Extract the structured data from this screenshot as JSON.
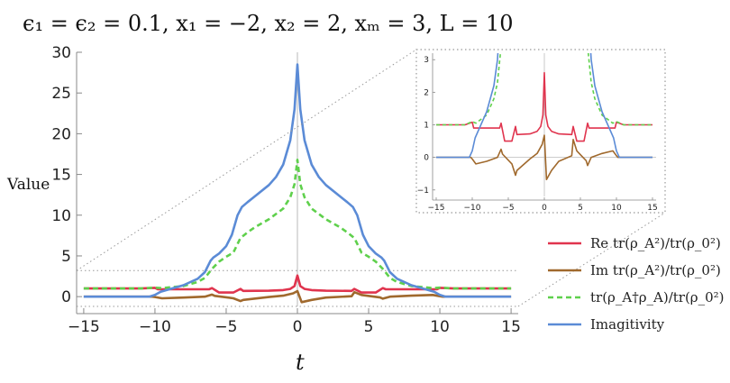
{
  "chart_data": {
    "type": "line",
    "title": "ϵ₁ = ϵ₂ = 0.1, x₁ = −2, x₂ = 2, xₘ = 3, L = 10",
    "xlabel": "t",
    "ylabel": "Value",
    "xlim": [
      -15.5,
      15.5
    ],
    "ylim": [
      -1.2,
      30
    ],
    "x_ticks": [
      -15,
      -10,
      -5,
      0,
      5,
      10,
      15
    ],
    "y_ticks": [
      0,
      5,
      10,
      15,
      20,
      25,
      30
    ],
    "inset": {
      "xlim": [
        -15.5,
        15.5
      ],
      "ylim": [
        -1.2,
        3.2
      ],
      "x_ticks": [
        -15,
        -10,
        -5,
        0,
        5,
        10,
        15
      ],
      "y_ticks": [
        -1,
        0,
        1,
        2,
        3
      ]
    },
    "series": [
      {
        "name": "Re tr(ρ_A²)/tr(ρ_0²)",
        "color": "#e0344e",
        "dash": false,
        "x": [
          -15,
          -11,
          -10,
          -9.8,
          -6.2,
          -6,
          -5.5,
          -4.5,
          -4,
          -3.8,
          -2,
          -1,
          -0.5,
          -0.2,
          0,
          0.2,
          0.5,
          1,
          2,
          3.8,
          4,
          4.5,
          5.5,
          6,
          6.2,
          9.8,
          10,
          11,
          15
        ],
        "y": [
          1.0,
          1.0,
          1.08,
          0.9,
          0.9,
          1.05,
          0.5,
          0.5,
          0.95,
          0.7,
          0.72,
          0.8,
          0.95,
          1.3,
          2.6,
          1.3,
          0.95,
          0.8,
          0.72,
          0.7,
          0.95,
          0.5,
          0.5,
          1.05,
          0.9,
          0.9,
          1.08,
          1.0,
          1.0
        ]
      },
      {
        "name": "Im tr(ρ_A²)/tr(ρ_0²)",
        "color": "#a0692d",
        "dash": false,
        "x": [
          -15,
          -10.2,
          -10,
          -9.5,
          -8,
          -6.5,
          -6,
          -5.8,
          -4.5,
          -4,
          -3.8,
          -2,
          -1,
          -0.3,
          0,
          0.3,
          1,
          2,
          3.8,
          4,
          4.5,
          5.8,
          6,
          6.5,
          8,
          9.5,
          10,
          10.2,
          15
        ],
        "y": [
          0,
          0,
          -0.05,
          -0.2,
          -0.12,
          0.0,
          0.25,
          0.1,
          -0.2,
          -0.55,
          -0.4,
          -0.05,
          0.12,
          0.4,
          0.68,
          -0.68,
          -0.4,
          -0.12,
          0.05,
          0.55,
          0.2,
          -0.1,
          -0.25,
          0.0,
          0.12,
          0.2,
          0.05,
          0,
          0
        ]
      },
      {
        "name": "tr(ρ_A†ρ_A)/tr(ρ_0²)",
        "color": "#5fd04c",
        "dash": true,
        "x": [
          -15,
          -11,
          -10,
          -9.5,
          -8,
          -7,
          -6.5,
          -6,
          -5.5,
          -5,
          -4.5,
          -4,
          -3.5,
          -3,
          -2,
          -1,
          -0.5,
          -0.2,
          0,
          0.2,
          0.5,
          1,
          2,
          3,
          3.5,
          4,
          4.5,
          5,
          5.5,
          6,
          6.5,
          7,
          8,
          9.5,
          10,
          11,
          15
        ],
        "y": [
          1.0,
          1.0,
          1.1,
          1.05,
          1.3,
          1.8,
          2.3,
          3.4,
          4.3,
          4.9,
          5.4,
          7.2,
          7.9,
          8.5,
          9.5,
          10.8,
          12.2,
          13.8,
          16.8,
          13.8,
          12.2,
          10.8,
          9.5,
          8.5,
          7.9,
          7.2,
          5.4,
          4.9,
          4.3,
          3.4,
          2.3,
          1.8,
          1.3,
          1.05,
          1.1,
          1.0,
          1.0
        ]
      },
      {
        "name": "Imagitivity",
        "color": "#5b8bd6",
        "dash": false,
        "x": [
          -15,
          -10.4,
          -10,
          -9.6,
          -8,
          -7,
          -6.5,
          -6.1,
          -5.9,
          -5.5,
          -5,
          -4.6,
          -4.2,
          -3.9,
          -3.5,
          -3,
          -2,
          -1.5,
          -1,
          -0.5,
          -0.2,
          0,
          0.2,
          0.5,
          1,
          1.5,
          2,
          3,
          3.5,
          3.9,
          4.2,
          4.6,
          5,
          5.5,
          5.9,
          6.1,
          6.5,
          7,
          8,
          9.6,
          10,
          10.4,
          15
        ],
        "y": [
          0,
          0,
          0.2,
          0.6,
          1.4,
          2.2,
          3.0,
          4.4,
          4.8,
          5.3,
          6.2,
          7.6,
          10.0,
          11.0,
          11.6,
          12.3,
          13.7,
          14.7,
          16.2,
          19.2,
          23.0,
          28.5,
          23.0,
          19.2,
          16.2,
          14.7,
          13.7,
          12.3,
          11.6,
          11.0,
          10.0,
          7.6,
          6.2,
          5.3,
          4.8,
          4.4,
          3.0,
          2.2,
          1.4,
          0.6,
          0.2,
          0,
          0
        ]
      }
    ],
    "legend": {
      "placement": "bottom-right",
      "entries": [
        "Re tr(ρ_A²)/tr(ρ_0²)",
        "Im tr(ρ_A²)/tr(ρ_0²)",
        "tr(ρ_A†ρ_A)/tr(ρ_0²)",
        "Imagitivity"
      ]
    }
  }
}
